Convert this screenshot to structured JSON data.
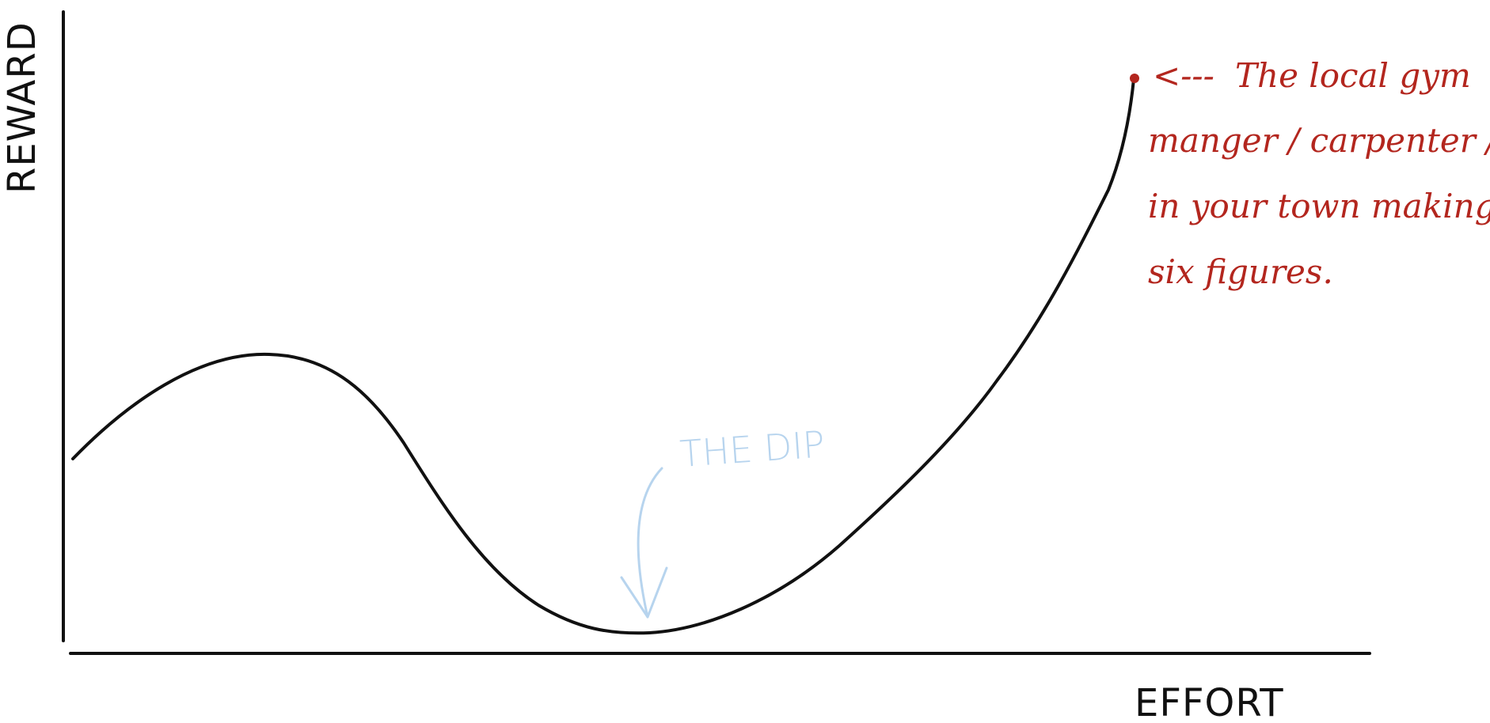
{
  "axes": {
    "y_label": "REWARD",
    "x_label": "EFFORT"
  },
  "annotations": {
    "dip_label": "THE DIP",
    "endpoint_note": {
      "arrow": "<---",
      "lines": [
        "The local gym",
        "manger / carpenter / SW",
        "in your town making",
        "six figures."
      ]
    }
  },
  "colors": {
    "ink": "#111111",
    "dip": "#b7d4ee",
    "note": "#b3261e"
  }
}
